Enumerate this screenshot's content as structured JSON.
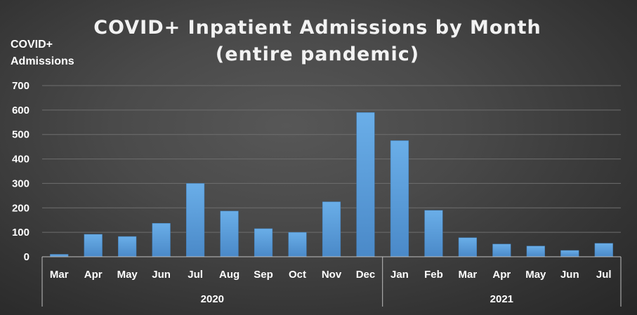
{
  "chart_data": {
    "type": "bar",
    "title_lines": [
      "COVID+ Inpatient Admissions by Month",
      "(entire pandemic)"
    ],
    "ylabel_lines": [
      "COVID+",
      "Admissions"
    ],
    "xlabel": "",
    "ylim": [
      0,
      700
    ],
    "yticks": [
      0,
      100,
      200,
      300,
      400,
      500,
      600,
      700
    ],
    "grid": true,
    "categories": [
      "Mar",
      "Apr",
      "May",
      "Jun",
      "Jul",
      "Aug",
      "Sep",
      "Oct",
      "Nov",
      "Dec",
      "Jan",
      "Feb",
      "Mar",
      "Apr",
      "May",
      "Jun",
      "Jul"
    ],
    "values": [
      10,
      92,
      83,
      137,
      300,
      187,
      115,
      100,
      225,
      590,
      475,
      190,
      78,
      52,
      44,
      26,
      55
    ],
    "groups": [
      {
        "label": "2020",
        "count": 10
      },
      {
        "label": "2021",
        "count": 7
      }
    ],
    "bar_color": "#5b9bd5"
  }
}
